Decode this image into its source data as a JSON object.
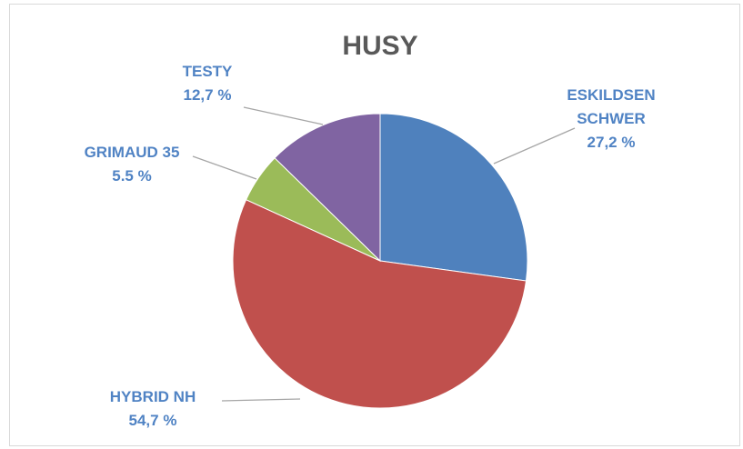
{
  "chart_data": {
    "type": "pie",
    "title": "HUSY",
    "categories": [
      "ESKILDSEN SCHWER",
      "HYBRID NH",
      "GRIMAUD 35",
      "TESTY"
    ],
    "values": [
      27.2,
      54.7,
      5.5,
      12.7
    ],
    "value_labels": [
      "27,2 %",
      "54,7 %",
      "5.5 %",
      "12,7 %"
    ],
    "colors": [
      "#4f81bd",
      "#c0504d",
      "#9bbb59",
      "#8064a2"
    ]
  }
}
